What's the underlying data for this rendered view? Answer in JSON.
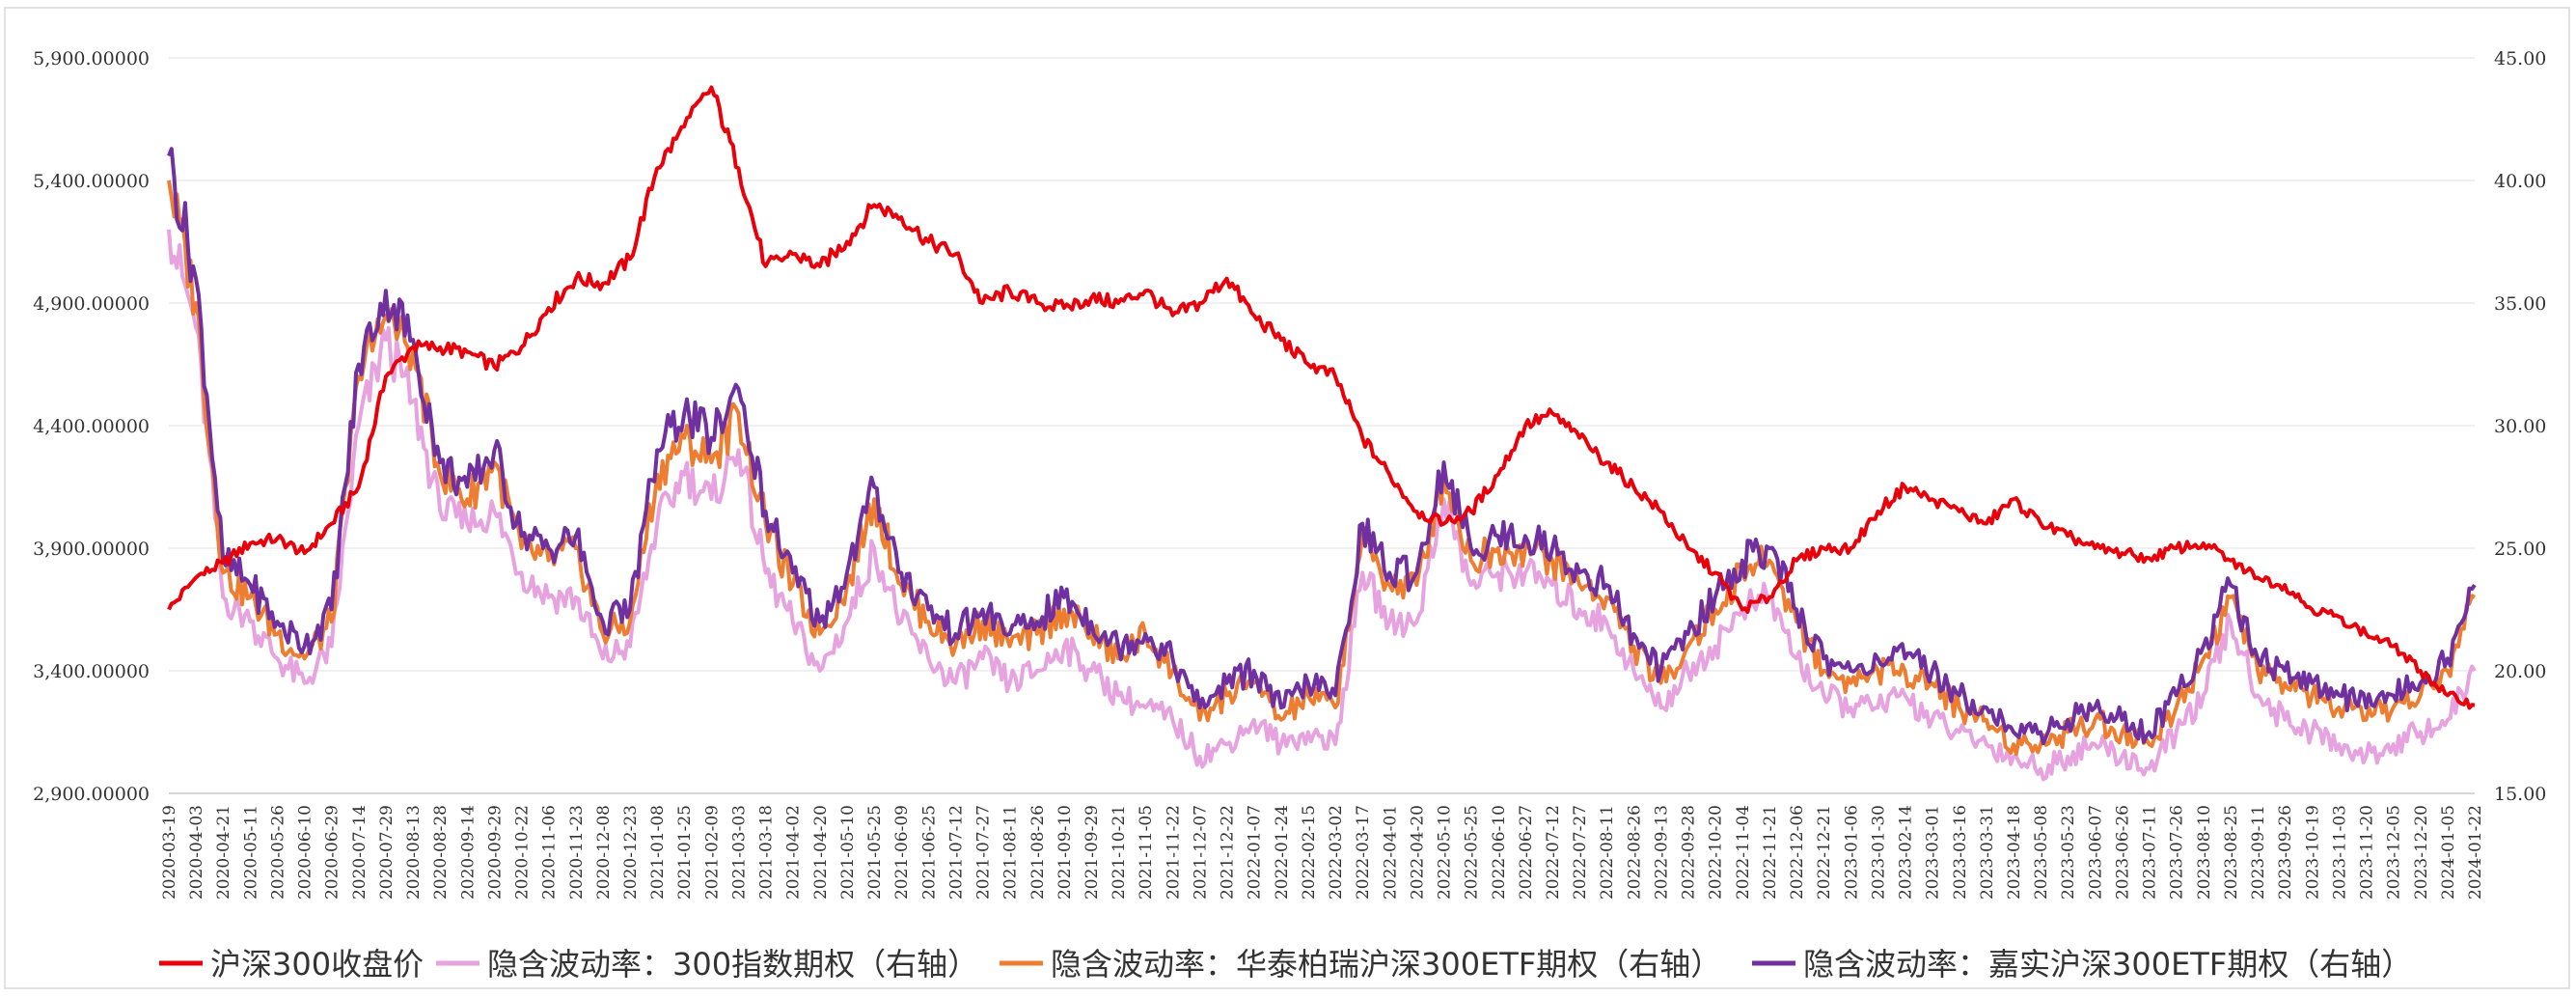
{
  "chart_data": {
    "type": "line",
    "title": "",
    "x_dates": [
      "2020-03-19",
      "2020-04-03",
      "2020-04-21",
      "2020-05-11",
      "2020-05-26",
      "2020-06-10",
      "2020-06-29",
      "2020-07-14",
      "2020-07-29",
      "2020-08-13",
      "2020-08-28",
      "2020-09-14",
      "2020-09-29",
      "2020-10-22",
      "2020-11-06",
      "2020-11-23",
      "2020-12-08",
      "2020-12-23",
      "2021-01-08",
      "2021-01-25",
      "2021-02-09",
      "2021-03-03",
      "2021-03-18",
      "2021-04-02",
      "2021-04-20",
      "2021-05-10",
      "2021-05-25",
      "2021-06-09",
      "2021-06-25",
      "2021-07-12",
      "2021-07-27",
      "2021-08-11",
      "2021-08-26",
      "2021-09-10",
      "2021-09-29",
      "2021-10-21",
      "2021-11-05",
      "2021-11-22",
      "2021-12-07",
      "2021-12-22",
      "2022-01-07",
      "2022-01-24",
      "2022-02-15",
      "2022-03-02",
      "2022-03-17",
      "2022-04-01",
      "2022-04-20",
      "2022-05-10",
      "2022-05-25",
      "2022-06-10",
      "2022-06-27",
      "2022-07-12",
      "2022-07-27",
      "2022-08-11",
      "2022-08-26",
      "2022-09-13",
      "2022-09-28",
      "2022-10-20",
      "2022-11-04",
      "2022-11-21",
      "2022-12-06",
      "2022-12-21",
      "2023-01-06",
      "2023-01-30",
      "2023-02-14",
      "2023-03-01",
      "2023-03-16",
      "2023-03-31",
      "2023-04-18",
      "2023-05-08",
      "2023-05-23",
      "2023-06-07",
      "2023-06-26",
      "2023-07-11",
      "2023-07-26",
      "2023-08-10",
      "2023-08-25",
      "2023-09-11",
      "2023-09-26",
      "2023-10-19",
      "2023-11-03",
      "2023-11-20",
      "2023-12-05",
      "2023-12-20",
      "2024-01-05",
      "2024-01-22"
    ],
    "y_left": {
      "ticks": [
        "2,900.00000",
        "3,400.00000",
        "3,900.00000",
        "4,400.00000",
        "4,900.00000",
        "5,400.00000",
        "5,900.00000"
      ],
      "min": 2900,
      "max": 5900
    },
    "y_right": {
      "ticks": [
        "15.00",
        "20.00",
        "25.00",
        "30.00",
        "35.00",
        "40.00",
        "45.00"
      ],
      "min": 15,
      "max": 45
    },
    "series": [
      {
        "name": "沪深300收盘价",
        "axis": "left",
        "color": "#e8000b",
        "values": [
          3650,
          3780,
          3840,
          3920,
          3940,
          3880,
          4000,
          4150,
          4600,
          4720,
          4720,
          4700,
          4640,
          4720,
          4880,
          5000,
          4980,
          5080,
          5450,
          5620,
          5780,
          5450,
          5050,
          5100,
          5050,
          5150,
          5300,
          5250,
          5150,
          5100,
          4900,
          4950,
          4900,
          4880,
          4920,
          4900,
          4950,
          4850,
          4900,
          5000,
          4850,
          4750,
          4650,
          4600,
          4350,
          4200,
          4050,
          4000,
          4050,
          4200,
          4400,
          4450,
          4350,
          4250,
          4150,
          4050,
          3900,
          3800,
          3650,
          3700,
          3850,
          3900,
          3900,
          4050,
          4150,
          4100,
          4050,
          4000,
          4100,
          4000,
          3950,
          3900,
          3880,
          3860,
          3900,
          3920,
          3850,
          3780,
          3750,
          3650,
          3620,
          3550,
          3500,
          3400,
          3300,
          3260
        ]
      },
      {
        "name": "隐含波动率：300指数期权（右轴）",
        "axis": "right",
        "color": "#e6a3df",
        "values": [
          38,
          34,
          23,
          22,
          20.5,
          19.5,
          21,
          30,
          33.5,
          31,
          26.5,
          26,
          26.5,
          24,
          23,
          23,
          20.5,
          21,
          26,
          28,
          27,
          29,
          24,
          22,
          20,
          22,
          25,
          22,
          20.5,
          19.5,
          20.5,
          19.5,
          20,
          21,
          20,
          19,
          18.5,
          18,
          16.5,
          17,
          18,
          17,
          17.5,
          17,
          24,
          22,
          22,
          27,
          23.5,
          24,
          24,
          23.5,
          22.5,
          22,
          20,
          18.5,
          20,
          21,
          22.5,
          23,
          20.5,
          19,
          18.5,
          18.5,
          19,
          18,
          17.5,
          17,
          16.5,
          16,
          16.5,
          17,
          16.5,
          16,
          17.5,
          19,
          22,
          19,
          18,
          17.5,
          17,
          16.5,
          17,
          17.5,
          18,
          20
        ]
      },
      {
        "name": "隐含波动率：华泰柏瑞沪深300ETF期权（右轴）",
        "axis": "right",
        "color": "#ed7d31",
        "values": [
          40,
          35,
          24,
          23,
          21.5,
          20.5,
          22,
          32,
          34.5,
          33,
          28,
          27,
          28.5,
          25,
          24.5,
          25,
          21.5,
          22,
          28,
          29.5,
          28.5,
          30.5,
          26,
          23.5,
          21.5,
          23.5,
          27,
          23.5,
          22,
          21,
          22,
          21,
          21.5,
          22.5,
          21.5,
          20.5,
          21.5,
          20,
          18,
          19,
          19.5,
          18,
          19,
          18.5,
          25.5,
          23.5,
          23.5,
          28,
          24.5,
          25,
          25,
          24.5,
          23.5,
          23,
          21,
          19.5,
          21,
          22.5,
          24,
          24.5,
          22,
          20,
          19.5,
          20,
          20,
          19.5,
          18.5,
          18,
          17,
          17,
          17.5,
          18,
          17.5,
          17,
          18.5,
          20.5,
          23,
          20,
          19.5,
          19,
          18.5,
          18,
          18.5,
          19,
          20,
          23
        ]
      },
      {
        "name": "隐含波动率：嘉实沪深300ETF期权（右轴）",
        "axis": "right",
        "color": "#7030a0",
        "values": [
          41,
          36,
          24.5,
          23.5,
          22,
          21,
          22.5,
          32.5,
          35.5,
          33.5,
          28.5,
          27.5,
          29,
          25.5,
          25,
          25.5,
          22,
          22.5,
          29,
          30.5,
          29.5,
          31.5,
          26.5,
          24,
          22,
          24,
          27.5,
          24,
          22.5,
          21.5,
          22.5,
          21.5,
          22,
          23,
          22,
          21,
          21.5,
          20.5,
          18.5,
          19.5,
          20,
          18.5,
          19.5,
          19,
          26,
          24,
          24,
          28.5,
          25,
          25.5,
          25.5,
          25,
          24,
          23.5,
          21.5,
          20,
          21.5,
          23,
          24.5,
          25,
          22.5,
          20.5,
          20,
          20.5,
          20.5,
          20,
          19,
          18.5,
          17.5,
          17.5,
          18,
          18.5,
          18,
          17.5,
          19,
          21,
          23.5,
          20.5,
          20,
          19.5,
          19,
          18.5,
          19,
          19.5,
          20.5,
          23.5
        ]
      }
    ],
    "legend_position": "bottom",
    "grid": "horizontal"
  }
}
